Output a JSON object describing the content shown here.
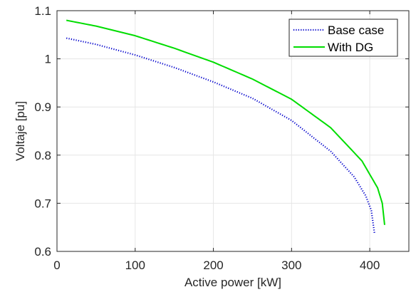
{
  "chart_data": {
    "type": "line",
    "title": "",
    "xlabel": "Active power [kW]",
    "ylabel": "Voltaje [pu]",
    "xlim": [
      0,
      450
    ],
    "ylim": [
      0.6,
      1.1
    ],
    "xticks": [
      0,
      100,
      200,
      300,
      400
    ],
    "yticks": [
      0.6,
      0.7,
      0.8,
      0.9,
      1.0,
      1.1
    ],
    "xtick_labels": [
      "0",
      "100",
      "200",
      "300",
      "400"
    ],
    "ytick_labels": [
      "0.6",
      "0.7",
      "0.8",
      "0.9",
      "1",
      "1.1"
    ],
    "grid": true,
    "legend_position": "top-right",
    "series": [
      {
        "name": "Base case",
        "color": "#0000cc",
        "style": "dotted",
        "x": [
          12,
          50,
          100,
          150,
          200,
          250,
          300,
          350,
          380,
          395,
          402,
          406
        ],
        "y": [
          1.043,
          1.03,
          1.008,
          0.982,
          0.952,
          0.918,
          0.872,
          0.808,
          0.755,
          0.715,
          0.685,
          0.638
        ]
      },
      {
        "name": "With DG",
        "color": "#00dd00",
        "style": "solid",
        "x": [
          12,
          50,
          100,
          150,
          200,
          250,
          300,
          350,
          390,
          410,
          416,
          419
        ],
        "y": [
          1.08,
          1.068,
          1.048,
          1.022,
          0.993,
          0.958,
          0.916,
          0.857,
          0.788,
          0.732,
          0.7,
          0.655
        ]
      }
    ]
  }
}
